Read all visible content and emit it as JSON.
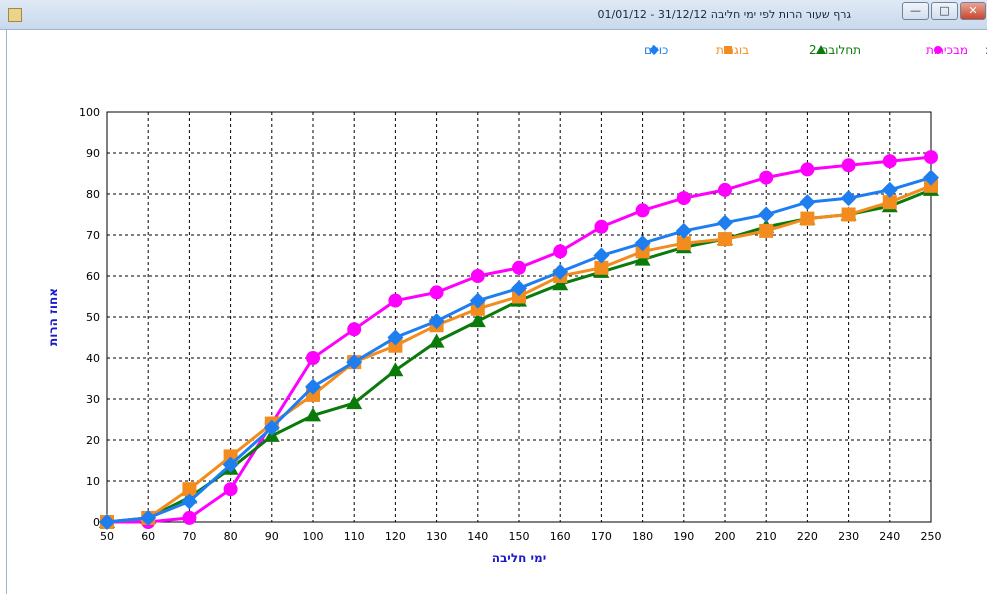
{
  "window": {
    "title": "גרף שעור הרות לפי ימי חליבה 31/12/12 - 01/01/12",
    "close_label": "✕",
    "maximize_label": "□",
    "minimize_label": "—",
    "app_icon": "document-edit-icon"
  },
  "legend": {
    "prefix": "מקרא:",
    "prefix_color": "#1a1acc"
  },
  "chart_data": {
    "type": "line",
    "x": [
      50,
      60,
      70,
      80,
      90,
      100,
      110,
      120,
      130,
      140,
      150,
      160,
      170,
      180,
      190,
      200,
      210,
      220,
      230,
      240,
      250
    ],
    "series": [
      {
        "name": "מבכירות",
        "color": "#ff00ff",
        "marker": "circle",
        "values": [
          0,
          0,
          1,
          8,
          24,
          40,
          47,
          54,
          56,
          60,
          62,
          66,
          72,
          76,
          79,
          81,
          84,
          86,
          87,
          88,
          89
        ]
      },
      {
        "name": "תחלובה 2",
        "color": "#0a7a0a",
        "marker": "triangle",
        "values": [
          0,
          1,
          6,
          13,
          21,
          26,
          29,
          37,
          44,
          49,
          54,
          58,
          61,
          64,
          67,
          69,
          72,
          74,
          75,
          77,
          81
        ]
      },
      {
        "name": "בוגרות",
        "color": "#f28c1e",
        "marker": "square",
        "values": [
          0,
          1,
          8,
          16,
          24,
          31,
          39,
          43,
          48,
          52,
          55,
          60,
          62,
          66,
          68,
          69,
          71,
          74,
          75,
          78,
          82
        ]
      },
      {
        "name": "כולם",
        "color": "#1e7ef0",
        "marker": "diamond",
        "values": [
          0,
          1,
          5,
          14,
          23,
          33,
          39,
          45,
          49,
          54,
          57,
          61,
          65,
          68,
          71,
          73,
          75,
          78,
          79,
          81,
          84
        ]
      }
    ],
    "xlabel": "ימי חליבה",
    "ylabel": "אחוז הרות",
    "xlim": [
      50,
      250
    ],
    "ylim": [
      0,
      100
    ],
    "xticks": [
      50,
      60,
      70,
      80,
      90,
      100,
      110,
      120,
      130,
      140,
      150,
      160,
      170,
      180,
      190,
      200,
      210,
      220,
      230,
      240,
      250
    ],
    "yticks": [
      0,
      10,
      20,
      30,
      40,
      50,
      60,
      70,
      80,
      90,
      100
    ],
    "grid": true,
    "legend_position": "top-right"
  }
}
